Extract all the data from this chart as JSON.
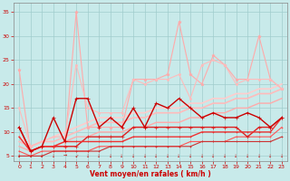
{
  "xlabel": "Vent moyen/en rafales ( km/h )",
  "xlim": [
    -0.5,
    23.5
  ],
  "ylim": [
    4,
    37
  ],
  "yticks": [
    5,
    10,
    15,
    20,
    25,
    30,
    35
  ],
  "xticks": [
    0,
    1,
    2,
    3,
    4,
    5,
    6,
    7,
    8,
    9,
    10,
    11,
    12,
    13,
    14,
    15,
    16,
    17,
    18,
    19,
    20,
    21,
    22,
    23
  ],
  "bg_color": "#c8eaea",
  "grid_color": "#a0cccc",
  "series": [
    {
      "y": [
        23,
        6,
        7,
        7,
        7,
        35,
        11,
        11,
        11,
        11,
        21,
        21,
        21,
        22,
        33,
        22,
        20,
        26,
        24,
        21,
        21,
        30,
        21,
        19
      ],
      "color": "#ffaaaa",
      "lw": 0.8,
      "marker": "*",
      "ms": 2.5,
      "zorder": 3
    },
    {
      "y": [
        15,
        7,
        8,
        9,
        9,
        24,
        15,
        14,
        14,
        14,
        21,
        20,
        21,
        21,
        22,
        17,
        24,
        25,
        24,
        20,
        21,
        21,
        21,
        19
      ],
      "color": "#ffbbbb",
      "lw": 0.8,
      "marker": "o",
      "ms": 1.5,
      "zorder": 3
    },
    {
      "y": [
        9,
        7,
        8,
        9,
        10,
        11,
        12,
        13,
        13,
        13,
        14,
        14,
        15,
        15,
        15,
        16,
        16,
        17,
        17,
        18,
        18,
        19,
        19,
        20
      ],
      "color": "#ffcccc",
      "lw": 1.2,
      "marker": null,
      "ms": 0,
      "zorder": 2
    },
    {
      "y": [
        8,
        7,
        8,
        8,
        9,
        10,
        11,
        12,
        12,
        12,
        13,
        13,
        14,
        14,
        14,
        15,
        15,
        16,
        16,
        17,
        17,
        18,
        18,
        19
      ],
      "color": "#ffbbbb",
      "lw": 1.2,
      "marker": null,
      "ms": 0,
      "zorder": 2
    },
    {
      "y": [
        7,
        6,
        7,
        7,
        8,
        9,
        9,
        10,
        10,
        10,
        11,
        11,
        12,
        12,
        12,
        13,
        13,
        14,
        14,
        15,
        15,
        16,
        16,
        17
      ],
      "color": "#ffaaaa",
      "lw": 1.0,
      "marker": null,
      "ms": 0,
      "zorder": 2
    },
    {
      "y": [
        11,
        6,
        7,
        13,
        8,
        17,
        17,
        11,
        13,
        11,
        15,
        11,
        16,
        15,
        17,
        15,
        13,
        14,
        13,
        13,
        14,
        13,
        11,
        13
      ],
      "color": "#cc0000",
      "lw": 1.0,
      "marker": "+",
      "ms": 3,
      "zorder": 5
    },
    {
      "y": [
        11,
        6,
        7,
        7,
        7,
        7,
        9,
        9,
        9,
        9,
        11,
        11,
        11,
        11,
        11,
        11,
        11,
        11,
        11,
        11,
        9,
        11,
        11,
        13
      ],
      "color": "#dd2222",
      "lw": 1.0,
      "marker": "+",
      "ms": 2.5,
      "zorder": 4
    },
    {
      "y": [
        9,
        6,
        7,
        7,
        8,
        8,
        8,
        8,
        8,
        8,
        9,
        9,
        9,
        9,
        9,
        9,
        10,
        10,
        10,
        10,
        10,
        10,
        10,
        13
      ],
      "color": "#ee3333",
      "lw": 1.0,
      "marker": "+",
      "ms": 2,
      "zorder": 4
    },
    {
      "y": [
        6,
        5,
        6,
        6,
        6,
        6,
        6,
        7,
        7,
        7,
        7,
        7,
        7,
        7,
        7,
        8,
        8,
        8,
        8,
        9,
        9,
        9,
        9,
        11
      ],
      "color": "#ff5555",
      "lw": 0.8,
      "marker": "+",
      "ms": 1.5,
      "zorder": 3
    },
    {
      "y": [
        5,
        5,
        5,
        6,
        6,
        6,
        6,
        6,
        7,
        7,
        7,
        7,
        7,
        7,
        7,
        7,
        8,
        8,
        8,
        8,
        8,
        8,
        8,
        9
      ],
      "color": "#cc3333",
      "lw": 0.8,
      "marker": "+",
      "ms": 1.5,
      "zorder": 3
    }
  ],
  "arrows_x": [
    0,
    1,
    2,
    3,
    4,
    5,
    6,
    7,
    8,
    9,
    10,
    11,
    12,
    13,
    14,
    15,
    16,
    17,
    18,
    19,
    20,
    21,
    22,
    23
  ],
  "arrows_dir": [
    "d",
    "d",
    "d",
    "d",
    "r",
    "dl",
    "d",
    "d",
    "d",
    "d",
    "d",
    "d",
    "d",
    "d",
    "d",
    "d",
    "d",
    "d",
    "d",
    "d",
    "d",
    "d",
    "d",
    "d"
  ]
}
